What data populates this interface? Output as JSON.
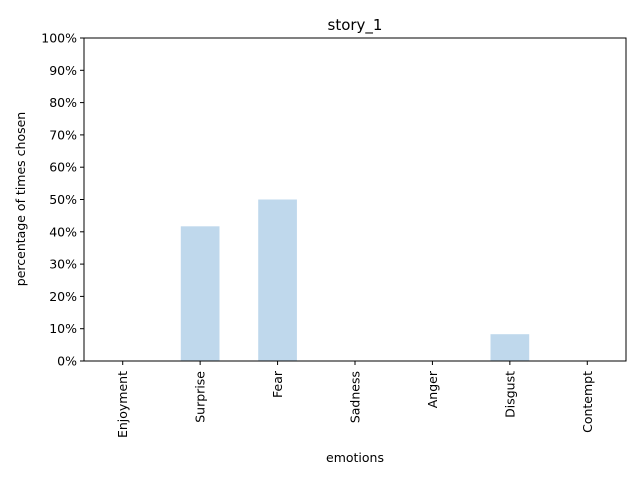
{
  "chart_data": {
    "type": "bar",
    "title": "story_1",
    "xlabel": "emotions",
    "ylabel": "percentage of times chosen",
    "categories": [
      "Enjoyment",
      "Surprise",
      "Fear",
      "Sadness",
      "Anger",
      "Disgust",
      "Contempt"
    ],
    "values": [
      0,
      41.7,
      50.0,
      0,
      0,
      8.3,
      0
    ],
    "ylim": [
      0,
      100
    ],
    "yticks": [
      0,
      10,
      20,
      30,
      40,
      50,
      60,
      70,
      80,
      90,
      100
    ],
    "ytick_labels": [
      "0%",
      "10%",
      "20%",
      "30%",
      "40%",
      "50%",
      "60%",
      "70%",
      "80%",
      "90%",
      "100%"
    ],
    "grid": false,
    "legend": "none",
    "bar_color": "#bfd8ec"
  }
}
